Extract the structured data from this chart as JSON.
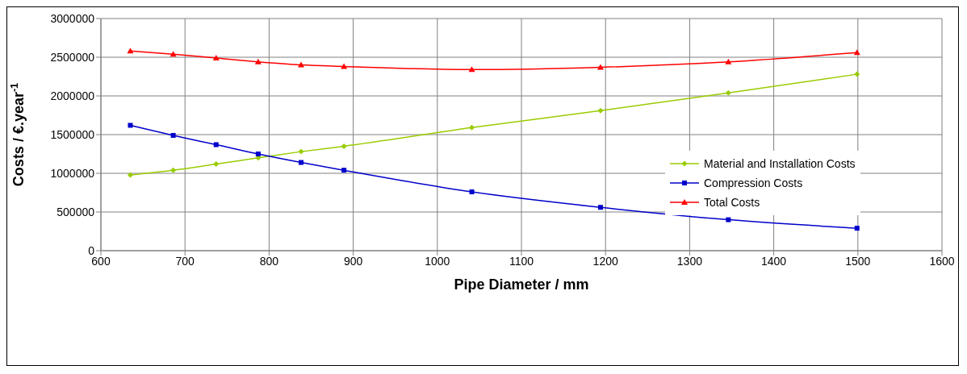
{
  "chart_data": {
    "type": "line",
    "xlabel": "Pipe Diameter / mm",
    "ylabel": "Costs / €.year$^{-1}$",
    "x": [
      635,
      686,
      737,
      787,
      838,
      889,
      1041,
      1194,
      1346,
      1499
    ],
    "series": [
      {
        "name": "Material and Installation Costs",
        "color": "#99cc00",
        "marker": "diamond",
        "values": [
          980000,
          1040000,
          1120000,
          1200000,
          1280000,
          1350000,
          1590000,
          1810000,
          2040000,
          2280000
        ]
      },
      {
        "name": "Compression Costs",
        "color": "#0000cc",
        "marker": "square",
        "values": [
          1620000,
          1490000,
          1370000,
          1250000,
          1140000,
          1040000,
          760000,
          560000,
          400000,
          290000
        ]
      },
      {
        "name": "Total Costs",
        "color": "#ff0000",
        "marker": "triangle",
        "values": [
          2580000,
          2540000,
          2490000,
          2440000,
          2400000,
          2380000,
          2340000,
          2370000,
          2440000,
          2560000
        ]
      }
    ],
    "xlim": [
      600,
      1600
    ],
    "xticks": [
      600,
      700,
      800,
      900,
      1000,
      1100,
      1200,
      1300,
      1400,
      1500,
      1600
    ],
    "ylim": [
      0,
      3000000
    ],
    "yticks": [
      0,
      500000,
      1000000,
      1500000,
      2000000,
      2500000,
      3000000
    ],
    "grid": true,
    "legend": "right",
    "line_style": "solid"
  }
}
